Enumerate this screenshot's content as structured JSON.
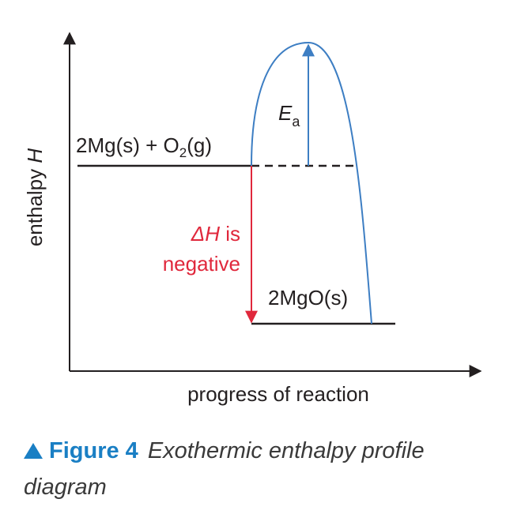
{
  "diagram": {
    "y_axis_label": "enthalpy",
    "y_axis_symbol": "H",
    "x_axis_label": "progress of reaction",
    "reactants": {
      "base": "2Mg(s) + O",
      "sub": "2",
      "tail": "(g)"
    },
    "products": "2MgO(s)",
    "activation_energy": {
      "symbol": "E",
      "sub": "a"
    },
    "delta_h": {
      "symbol": "ΔH",
      "suffix": " is",
      "line2": "negative"
    },
    "colors": {
      "curve": "#3d7ec3",
      "delta_h": "#e0283c",
      "axis": "#231f20"
    }
  },
  "caption": {
    "label": "Figure 4",
    "text": "Exothermic enthalpy profile diagram"
  }
}
